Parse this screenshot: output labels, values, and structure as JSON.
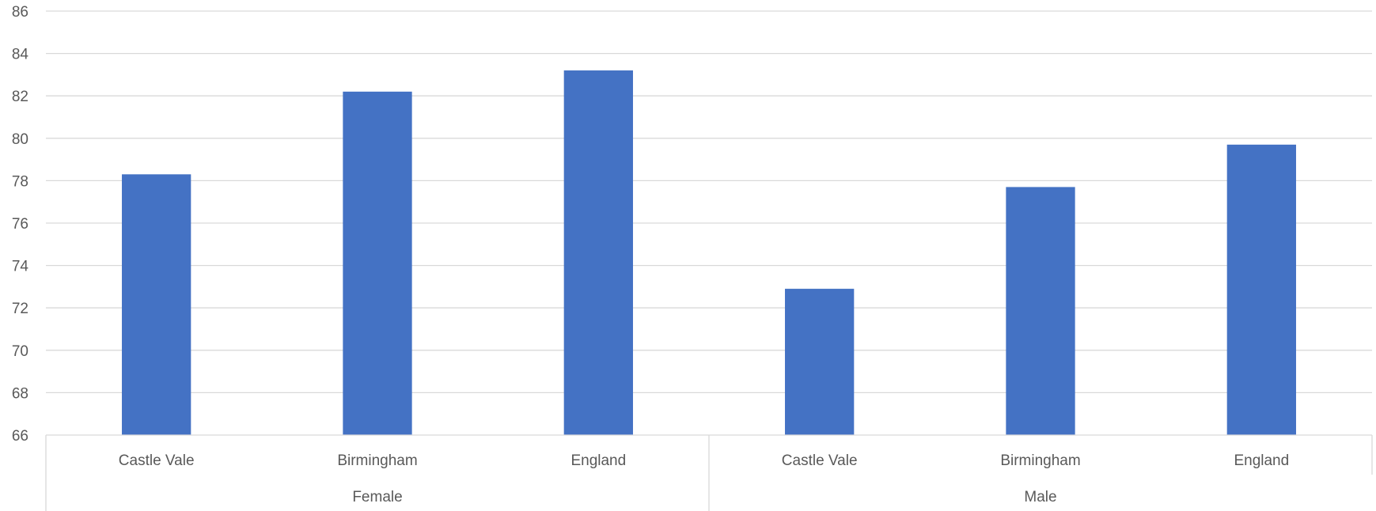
{
  "chart_data": {
    "type": "bar",
    "groups": [
      {
        "label": "Female",
        "categories": [
          "Castle Vale",
          "Birmingham",
          "England"
        ],
        "values": [
          78.3,
          82.2,
          83.2
        ]
      },
      {
        "label": "Male",
        "categories": [
          "Castle Vale",
          "Birmingham",
          "England"
        ],
        "values": [
          72.9,
          77.7,
          79.7
        ]
      }
    ],
    "series": [
      {
        "values": [
          78.3,
          82.2,
          83.2,
          72.9,
          77.7,
          79.7
        ]
      }
    ],
    "ylim": [
      66,
      86
    ],
    "yticks": [
      "66",
      "68",
      "70",
      "72",
      "74",
      "76",
      "78",
      "80",
      "82",
      "84",
      "86"
    ],
    "grid": true,
    "legend": "none",
    "colors": {
      "bar": "#4472c4",
      "grid": "#d9d9d9",
      "text": "#595959"
    }
  }
}
